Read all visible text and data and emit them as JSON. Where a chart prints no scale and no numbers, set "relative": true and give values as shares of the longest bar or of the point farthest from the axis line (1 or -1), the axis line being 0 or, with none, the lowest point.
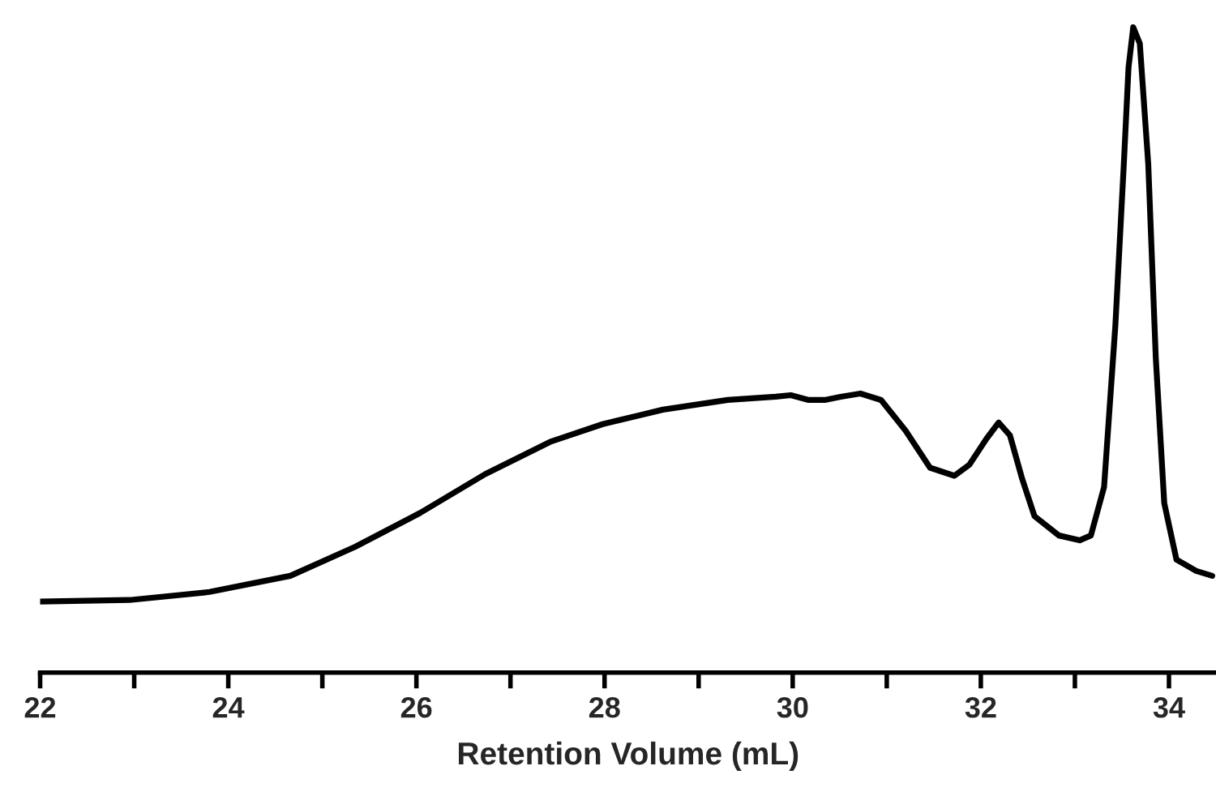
{
  "chart_data": {
    "type": "line",
    "xlabel": "Retention Volume (mL)",
    "relative": true,
    "tick_labels": "x",
    "grid": false,
    "legend": false,
    "xlim": [
      22,
      34.5
    ],
    "xticks": [
      22,
      {
        "value": 23,
        "label": null
      },
      24,
      {
        "value": 25,
        "label": null
      },
      26,
      {
        "value": 27,
        "label": null
      },
      28,
      {
        "value": 29,
        "label": null
      },
      30,
      {
        "value": 31,
        "label": null
      },
      32,
      {
        "value": 33,
        "label": null
      },
      34
    ],
    "series": [
      {
        "color": "#000000",
        "x": [
          22.0,
          22.95,
          23.8,
          24.66,
          25.35,
          26.04,
          26.73,
          27.42,
          27.98,
          28.62,
          29.31,
          29.82,
          29.98,
          30.17,
          30.34,
          30.51,
          30.72,
          30.94,
          31.2,
          31.46,
          31.72,
          31.88,
          32.06,
          32.19,
          32.31,
          32.44,
          32.57,
          32.83,
          33.05,
          33.17,
          33.31,
          33.43,
          33.52,
          33.57,
          33.62,
          33.69,
          33.78,
          33.86,
          33.95,
          34.08,
          34.29,
          34.46
        ],
        "values": [
          0.11,
          0.1125,
          0.125,
          0.15,
          0.195,
          0.2475,
          0.3075,
          0.3575,
          0.385,
          0.4075,
          0.4225,
          0.4275,
          0.43,
          0.4225,
          0.4225,
          0.4275,
          0.4325,
          0.4225,
          0.375,
          0.3175,
          0.305,
          0.3225,
          0.3625,
          0.3875,
          0.3675,
          0.3,
          0.2425,
          0.2125,
          0.205,
          0.2125,
          0.2875,
          0.5375,
          0.7875,
          0.9375,
          1.0,
          0.975,
          0.7875,
          0.4875,
          0.2625,
          0.175,
          0.1575,
          0.15
        ]
      }
    ]
  }
}
